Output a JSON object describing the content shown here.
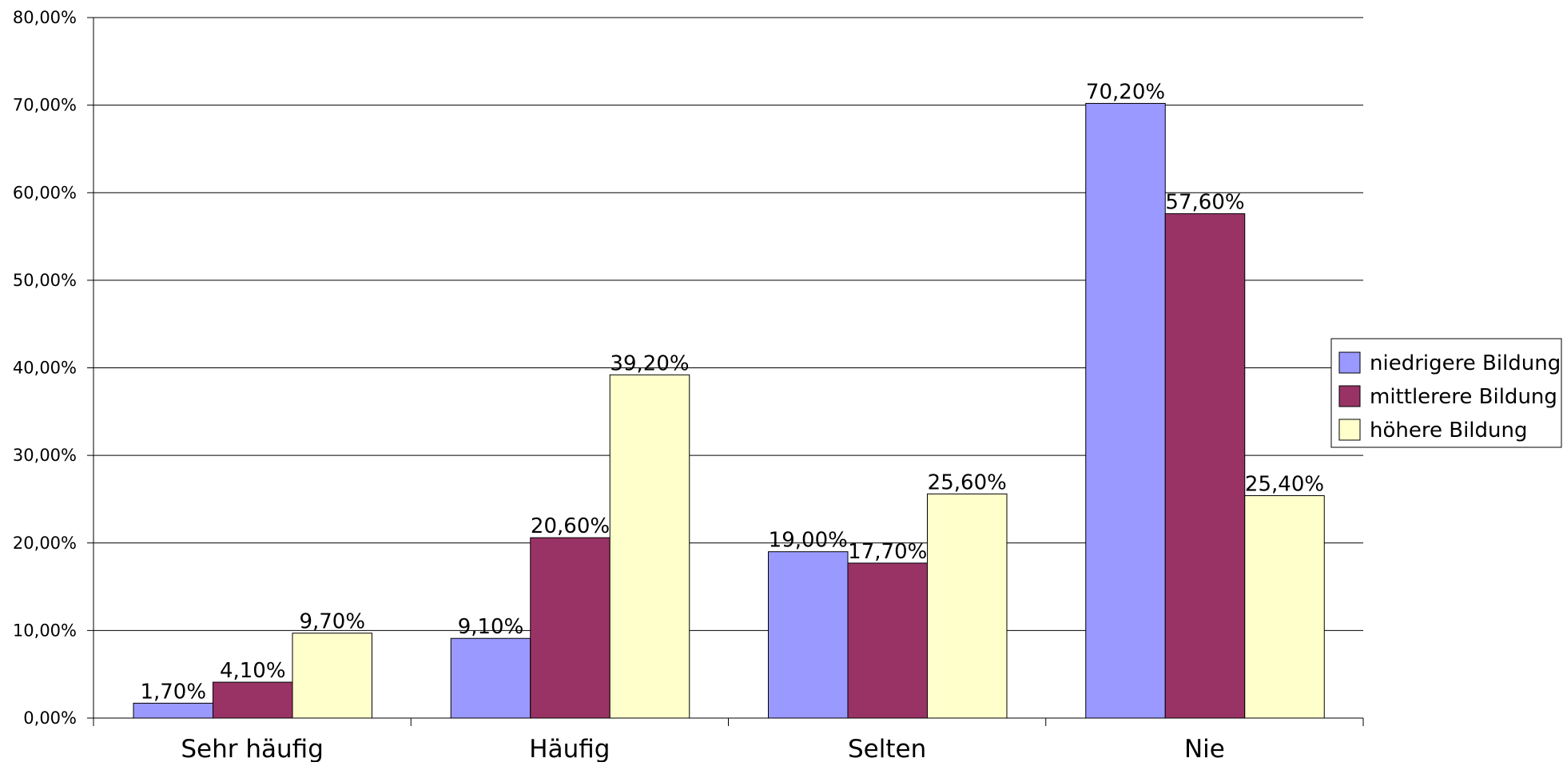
{
  "chart_data": {
    "type": "bar",
    "title": "",
    "xlabel": "",
    "ylabel": "",
    "categories": [
      "Sehr häufig",
      "Häufig",
      "Selten",
      "Nie"
    ],
    "series": [
      {
        "name": "niedrigere Bildung",
        "values": [
          1.7,
          9.1,
          19.0,
          70.2
        ],
        "labels": [
          "1,70%",
          "9,10%",
          "19,00%",
          "70,20%"
        ],
        "color": "#9999ff"
      },
      {
        "name": "mittlerere Bildung",
        "values": [
          4.1,
          20.6,
          17.7,
          57.6
        ],
        "labels": [
          "4,10%",
          "20,60%",
          "17,70%",
          "57,60%"
        ],
        "color": "#993366"
      },
      {
        "name": "höhere Bildung",
        "values": [
          9.7,
          39.2,
          25.6,
          25.4
        ],
        "labels": [
          "9,70%",
          "39,20%",
          "25,60%",
          "25,40%"
        ],
        "color": "#ffffcc"
      }
    ],
    "ylim": [
      0,
      80
    ],
    "yticks": [
      {
        "value": 0,
        "label": "0,00%"
      },
      {
        "value": 10,
        "label": "10,00%"
      },
      {
        "value": 20,
        "label": "20,00%"
      },
      {
        "value": 30,
        "label": "30,00%"
      },
      {
        "value": 40,
        "label": "40,00%"
      },
      {
        "value": 50,
        "label": "50,00%"
      },
      {
        "value": 60,
        "label": "60,00%"
      },
      {
        "value": 70,
        "label": "70,00%"
      },
      {
        "value": 80,
        "label": "80,00%"
      }
    ],
    "grid": true,
    "legend_position": "right"
  }
}
